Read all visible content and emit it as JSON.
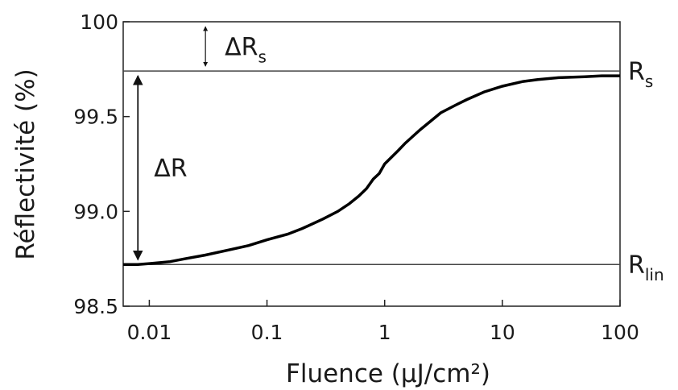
{
  "chart_data": {
    "type": "line",
    "xlabel": "Fluence (µJ/cm²)",
    "ylabel": "Réflectivité (%)",
    "x_scale": "log",
    "xlim": [
      0.006,
      100
    ],
    "ylim": [
      98.5,
      100
    ],
    "x_ticks": [
      0.01,
      0.1,
      1,
      10,
      100
    ],
    "x_tick_labels": [
      "0.01",
      "0.1",
      "1",
      "10",
      "100"
    ],
    "y_ticks": [
      98.5,
      99.0,
      99.5,
      100
    ],
    "y_tick_labels": [
      "98.5",
      "99.0",
      "99.5",
      "100"
    ],
    "grid": false,
    "series": [
      {
        "x": [
          0.006,
          0.008,
          0.01,
          0.015,
          0.02,
          0.03,
          0.05,
          0.07,
          0.1,
          0.15,
          0.2,
          0.3,
          0.4,
          0.5,
          0.6,
          0.7,
          0.8,
          0.9,
          1,
          1.3,
          1.5,
          2,
          3,
          4,
          5,
          7,
          10,
          15,
          20,
          30,
          50,
          70,
          100
        ],
        "values": [
          98.72,
          98.72,
          98.725,
          98.735,
          98.75,
          98.77,
          98.8,
          98.82,
          98.85,
          98.88,
          98.91,
          98.96,
          99.0,
          99.04,
          99.08,
          99.12,
          99.17,
          99.2,
          99.25,
          99.32,
          99.36,
          99.43,
          99.52,
          99.56,
          99.59,
          99.63,
          99.66,
          99.685,
          99.695,
          99.705,
          99.71,
          99.715,
          99.715
        ]
      }
    ],
    "reference_lines": [
      {
        "y": 99.74,
        "label_main": "R",
        "label_sub": "s"
      },
      {
        "y": 98.72,
        "label_main": "R",
        "label_sub": "lin"
      }
    ],
    "annotations": [
      {
        "main": "ΔR",
        "sub": "s",
        "from_y": 100,
        "to_y": 99.74,
        "x": 0.03
      },
      {
        "main": "ΔR",
        "sub": "",
        "from_y": 99.74,
        "to_y": 98.72,
        "x": 0.008
      }
    ]
  }
}
